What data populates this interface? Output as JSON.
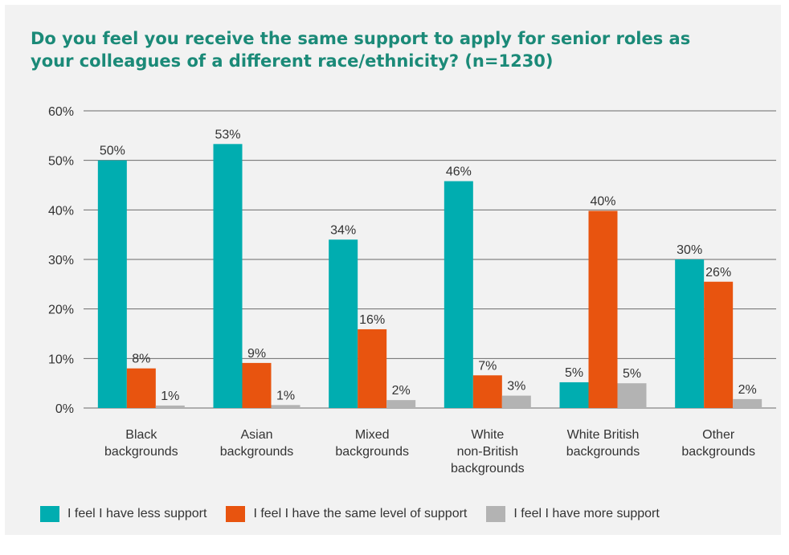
{
  "chart_data": {
    "type": "bar",
    "title": [
      "Do you feel you receive the same support to apply for senior roles as",
      "your colleagues of a different race/ethnicity? (n=1230)"
    ],
    "categories": [
      [
        "Black",
        "backgrounds"
      ],
      [
        "Asian",
        "backgrounds"
      ],
      [
        "Mixed",
        "backgrounds"
      ],
      [
        "White",
        "non-British",
        "backgrounds"
      ],
      [
        "White British",
        "backgrounds"
      ],
      [
        "Other",
        "backgrounds"
      ]
    ],
    "series": [
      {
        "name": "I feel I have less support",
        "color": "#00adb0",
        "values": [
          50,
          53.3,
          34,
          45.8,
          5.2,
          30
        ],
        "labels": [
          "50%",
          "53%",
          "34%",
          "46%",
          "5%",
          "30%"
        ]
      },
      {
        "name": "I feel I have the same level of support",
        "color": "#e8540f",
        "values": [
          8,
          9.1,
          15.9,
          6.6,
          39.8,
          25.5
        ],
        "labels": [
          "8%",
          "9%",
          "16%",
          "7%",
          "40%",
          "26%"
        ]
      },
      {
        "name": "I feel I have more support",
        "color": "#b3b3b3",
        "values": [
          0.5,
          0.6,
          1.6,
          2.5,
          5,
          1.8
        ],
        "labels": [
          "1%",
          "1%",
          "2%",
          "3%",
          "5%",
          "2%"
        ]
      }
    ],
    "yticks": [
      "0%",
      "10%",
      "20%",
      "30%",
      "40%",
      "50%",
      "60%"
    ],
    "ylim": [
      0,
      60
    ],
    "grid": true,
    "legend_position": "bottom"
  }
}
